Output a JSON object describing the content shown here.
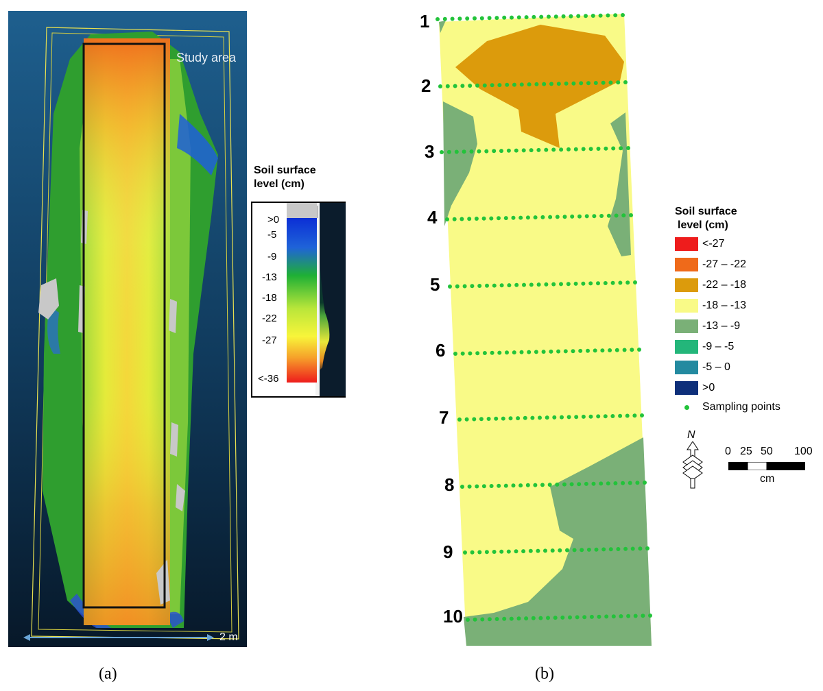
{
  "panel_a": {
    "caption": "(a)",
    "study_area_label": "Study area",
    "scale_label": "2 m",
    "legend": {
      "title_line1": "Soil surface",
      "title_line2": "level (cm)",
      "ticks": [
        ">0",
        "-5",
        "-9",
        "-13",
        "-18",
        "-22",
        "-27",
        "<-36"
      ]
    }
  },
  "panel_b": {
    "caption": "(b)",
    "row_labels": [
      "1",
      "2",
      "3",
      "4",
      "5",
      "6",
      "7",
      "8",
      "9",
      "10"
    ],
    "legend": {
      "title_line1": "Soil surface",
      "title_line2": "level (cm)",
      "classes": [
        {
          "label": "<-27",
          "color": "#ee1c1c"
        },
        {
          "label": "-27 – -22",
          "color": "#ef6a1a"
        },
        {
          "label": "-22 – -18",
          "color": "#dc9b0c"
        },
        {
          "label": "-18 – -13",
          "color": "#f9fa87"
        },
        {
          "label": "-13 – -9",
          "color": "#7ab077"
        },
        {
          "label": "-9 – -5",
          "color": "#23b67a"
        },
        {
          "label": "-5 – 0",
          "color": "#238aa0"
        },
        {
          "label": ">0",
          "color": "#0e2f7a"
        }
      ],
      "sampling_label": "Sampling points",
      "sampling_color": "#22c33a"
    },
    "north_label": "N",
    "scalebar": {
      "ticks": [
        "0",
        "25",
        "50",
        "100"
      ],
      "unit": "cm"
    }
  }
}
